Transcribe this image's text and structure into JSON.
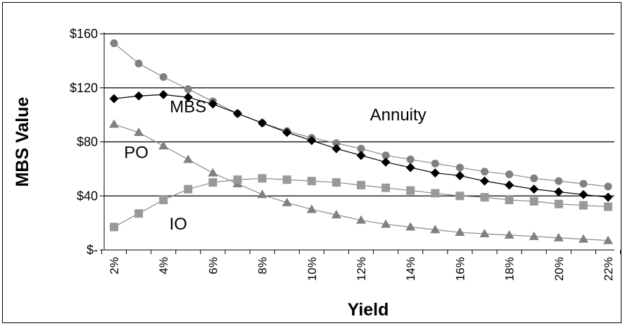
{
  "chart_data": {
    "type": "line",
    "title": "",
    "xlabel": "Yield",
    "ylabel": "MBS Value",
    "ylim": [
      0,
      160
    ],
    "xlim": [
      2,
      22
    ],
    "y_ticks": [
      {
        "value": 0,
        "label": "$-"
      },
      {
        "value": 40,
        "label": "$40"
      },
      {
        "value": 80,
        "label": "$80"
      },
      {
        "value": 120,
        "label": "$120"
      },
      {
        "value": 160,
        "label": "$160"
      }
    ],
    "x_tick_labels": [
      "2%",
      "4%",
      "6%",
      "8%",
      "10%",
      "12%",
      "14%",
      "16%",
      "18%",
      "20%",
      "22%"
    ],
    "grid": true,
    "x": [
      2,
      3,
      4,
      5,
      6,
      7,
      8,
      9,
      10,
      11,
      12,
      13,
      14,
      15,
      16,
      17,
      18,
      19,
      20,
      21,
      22
    ],
    "series": [
      {
        "name": "Annuity",
        "color": "#808080",
        "marker": "circle",
        "values": [
          153,
          138,
          128,
          119,
          110,
          101,
          94,
          88,
          83,
          79,
          75,
          70,
          67,
          64,
          61,
          58,
          56,
          53,
          51,
          49,
          47
        ]
      },
      {
        "name": "MBS",
        "color": "#000000",
        "marker": "diamond",
        "values": [
          112,
          114,
          115,
          113,
          108,
          101,
          94,
          87,
          81,
          75,
          70,
          65,
          61,
          57,
          55,
          51,
          48,
          45,
          43,
          41,
          39
        ]
      },
      {
        "name": "PO",
        "color": "#808080",
        "marker": "triangle",
        "values": [
          93,
          87,
          77,
          67,
          57,
          49,
          41,
          35,
          30,
          26,
          22,
          19,
          17,
          15,
          13,
          12,
          11,
          10,
          9,
          8,
          7
        ]
      },
      {
        "name": "IO",
        "color": "#999999",
        "marker": "square",
        "values": [
          17,
          27,
          37,
          45,
          50,
          52,
          53,
          52,
          51,
          50,
          48,
          46,
          44,
          42,
          40,
          39,
          37,
          36,
          34,
          33,
          32
        ]
      }
    ],
    "annotations": [
      {
        "text": "MBS",
        "x": 5.0,
        "y": 102
      },
      {
        "text": "Annuity",
        "x": 13.5,
        "y": 96
      },
      {
        "text": "PO",
        "x": 2.9,
        "y": 68
      },
      {
        "text": "IO",
        "x": 4.6,
        "y": 15
      }
    ]
  }
}
